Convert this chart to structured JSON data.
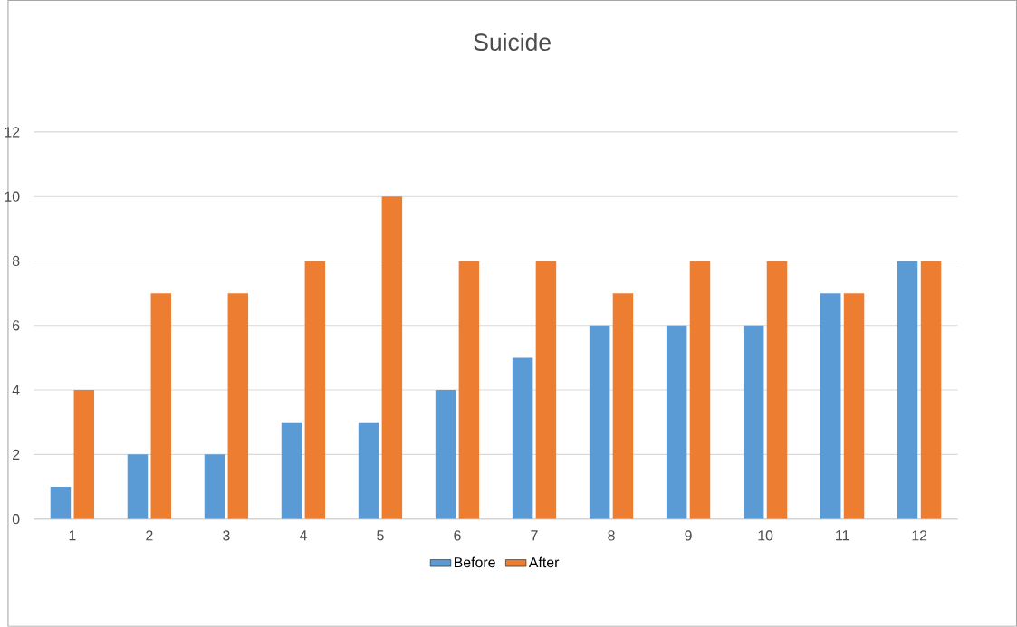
{
  "chart_data": {
    "type": "bar",
    "title": "Suicide",
    "categories": [
      "1",
      "2",
      "3",
      "4",
      "5",
      "6",
      "7",
      "8",
      "9",
      "10",
      "11",
      "12"
    ],
    "series": [
      {
        "name": "Before",
        "color": "#5b9bd5",
        "values": [
          1,
          2,
          2,
          3,
          3,
          4,
          5,
          6,
          6,
          6,
          7,
          8
        ]
      },
      {
        "name": "After",
        "color": "#ed7d31",
        "values": [
          4,
          7,
          7,
          8,
          10,
          8,
          8,
          7,
          8,
          8,
          7,
          8
        ]
      }
    ],
    "ylim": [
      0,
      12
    ],
    "yticks": [
      0,
      2,
      4,
      6,
      8,
      10,
      12
    ],
    "grid": "y",
    "legend": "bottom"
  }
}
